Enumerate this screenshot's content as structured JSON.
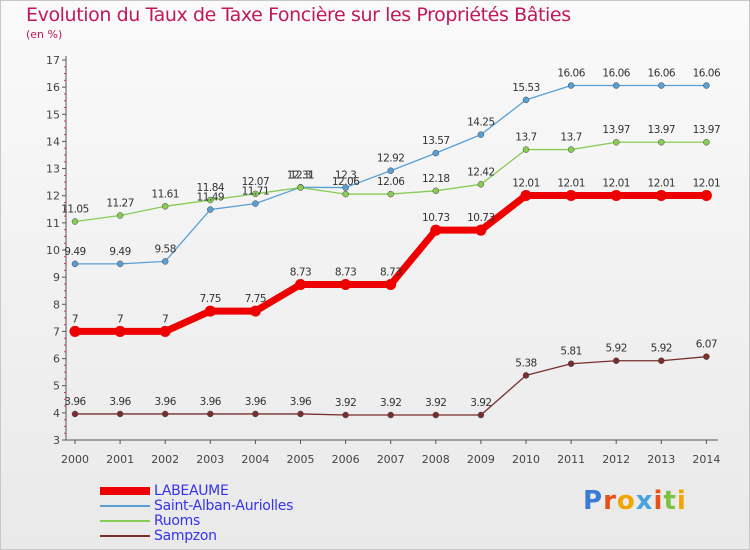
{
  "chart_data": {
    "type": "line",
    "title": "Evolution du Taux de Taxe Foncière sur les Propriétés Bâties",
    "subtitle": "(en %)",
    "x": [
      "2000",
      "2001",
      "2002",
      "2003",
      "2004",
      "2005",
      "2006",
      "2007",
      "2008",
      "2009",
      "2010",
      "2011",
      "2012",
      "2013",
      "2014"
    ],
    "ylim": [
      3,
      17
    ],
    "yticks": [
      3,
      4,
      5,
      6,
      7,
      8,
      9,
      10,
      11,
      12,
      13,
      14,
      15,
      16,
      17
    ],
    "grid": false,
    "legend_position": "bottom-left",
    "series": [
      {
        "name": "LABEAUME",
        "color": "#ee0000",
        "values": [
          7,
          7,
          7,
          7.75,
          7.75,
          8.73,
          8.73,
          8.73,
          10.73,
          10.73,
          12.01,
          12.01,
          12.01,
          12.01,
          12.01
        ],
        "labels": [
          "7",
          "7",
          "7",
          "7.75",
          "7.75",
          "8.73",
          "8.73",
          "8.73",
          "10.73",
          "10.73",
          "12.01",
          "12.01",
          "12.01",
          "12.01",
          "12.01"
        ]
      },
      {
        "name": "Saint-Alban-Auriolles",
        "color": "#5a9fd4",
        "values": [
          9.49,
          9.49,
          9.58,
          11.49,
          11.71,
          12.31,
          12.3,
          12.92,
          13.57,
          14.25,
          15.53,
          16.06,
          16.06,
          16.06,
          16.06
        ],
        "labels": [
          "9.49",
          "9.49",
          "9.58",
          "11.49",
          "11.71",
          "12.31",
          "12.3",
          "12.92",
          "13.57",
          "14.25",
          "15.53",
          "16.06",
          "16.06",
          "16.06",
          "16.06"
        ]
      },
      {
        "name": "Ruoms",
        "color": "#88cc55",
        "values": [
          11.05,
          11.27,
          11.61,
          11.84,
          12.07,
          12.3,
          12.06,
          12.06,
          12.18,
          12.42,
          13.7,
          13.7,
          13.97,
          13.97,
          13.97
        ],
        "labels": [
          "11.05",
          "11.27",
          "11.61",
          "11.84",
          "12.07",
          "12.3",
          "12.06",
          "12.06",
          "12.18",
          "12.42",
          "13.7",
          "13.7",
          "13.97",
          "13.97",
          "13.97"
        ]
      },
      {
        "name": "Sampzon",
        "color": "#7a2e2e",
        "values": [
          3.96,
          3.96,
          3.96,
          3.96,
          3.96,
          3.96,
          3.92,
          3.92,
          3.92,
          3.92,
          5.38,
          5.81,
          5.92,
          5.92,
          6.07
        ],
        "labels": [
          "3.96",
          "3.96",
          "3.96",
          "3.96",
          "3.96",
          "3.96",
          "3.92",
          "3.92",
          "3.92",
          "3.92",
          "5.38",
          "5.81",
          "5.92",
          "5.92",
          "6.07"
        ]
      }
    ]
  },
  "logo": {
    "text": "Proxiti"
  }
}
